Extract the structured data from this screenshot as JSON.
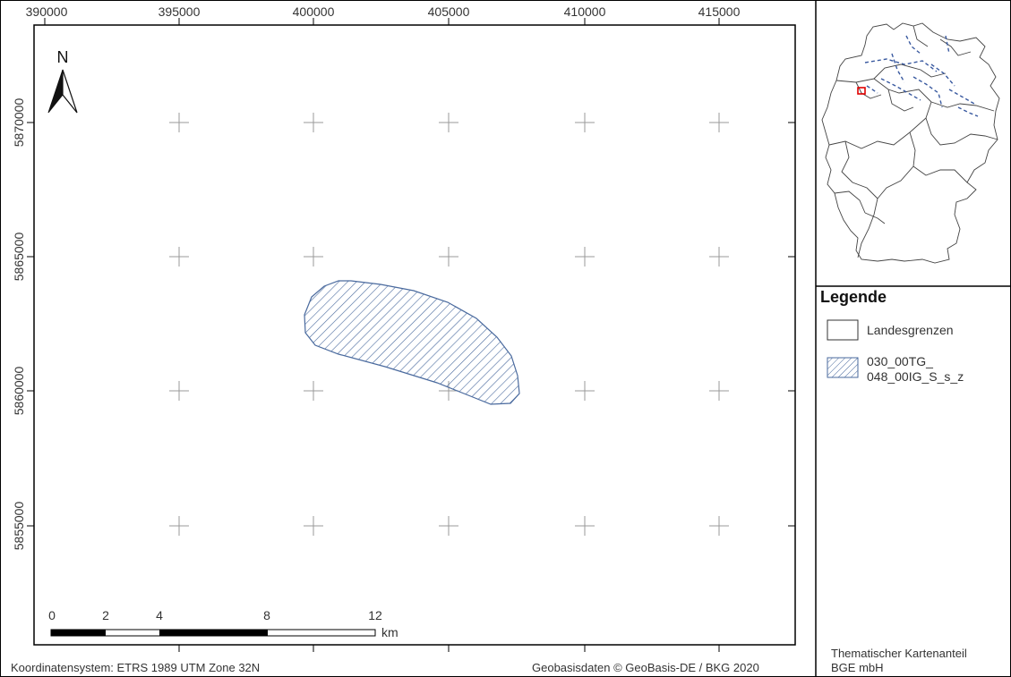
{
  "map": {
    "north_label": "N",
    "x_ticks": [
      "390000",
      "395000",
      "400000",
      "405000",
      "410000",
      "415000"
    ],
    "y_ticks": [
      "5870000",
      "5865000",
      "5860000",
      "5855000"
    ],
    "scale_bar": {
      "labels": [
        "0",
        "2",
        "4",
        "8",
        "12"
      ],
      "unit": "km"
    }
  },
  "legend": {
    "title": "Legende",
    "items": [
      {
        "label": "Landesgrenzen"
      },
      {
        "label_line1": "030_00TG_",
        "label_line2": "048_00IG_S_s_z"
      }
    ]
  },
  "footer": {
    "crs": "Koordinatensystem: ETRS 1989 UTM Zone 32N",
    "source": "Geobasisdaten © GeoBasis-DE / BKG 2020",
    "credit_line1": "Thematischer Kartenanteil",
    "credit_line2": "BGE mbH"
  },
  "colors": {
    "hatch": "#4a6a9e",
    "frame": "#000000",
    "grid_cross": "#9a9a9a",
    "inset_highlight": "#e00000",
    "inset_water": "#3a5aa0"
  }
}
